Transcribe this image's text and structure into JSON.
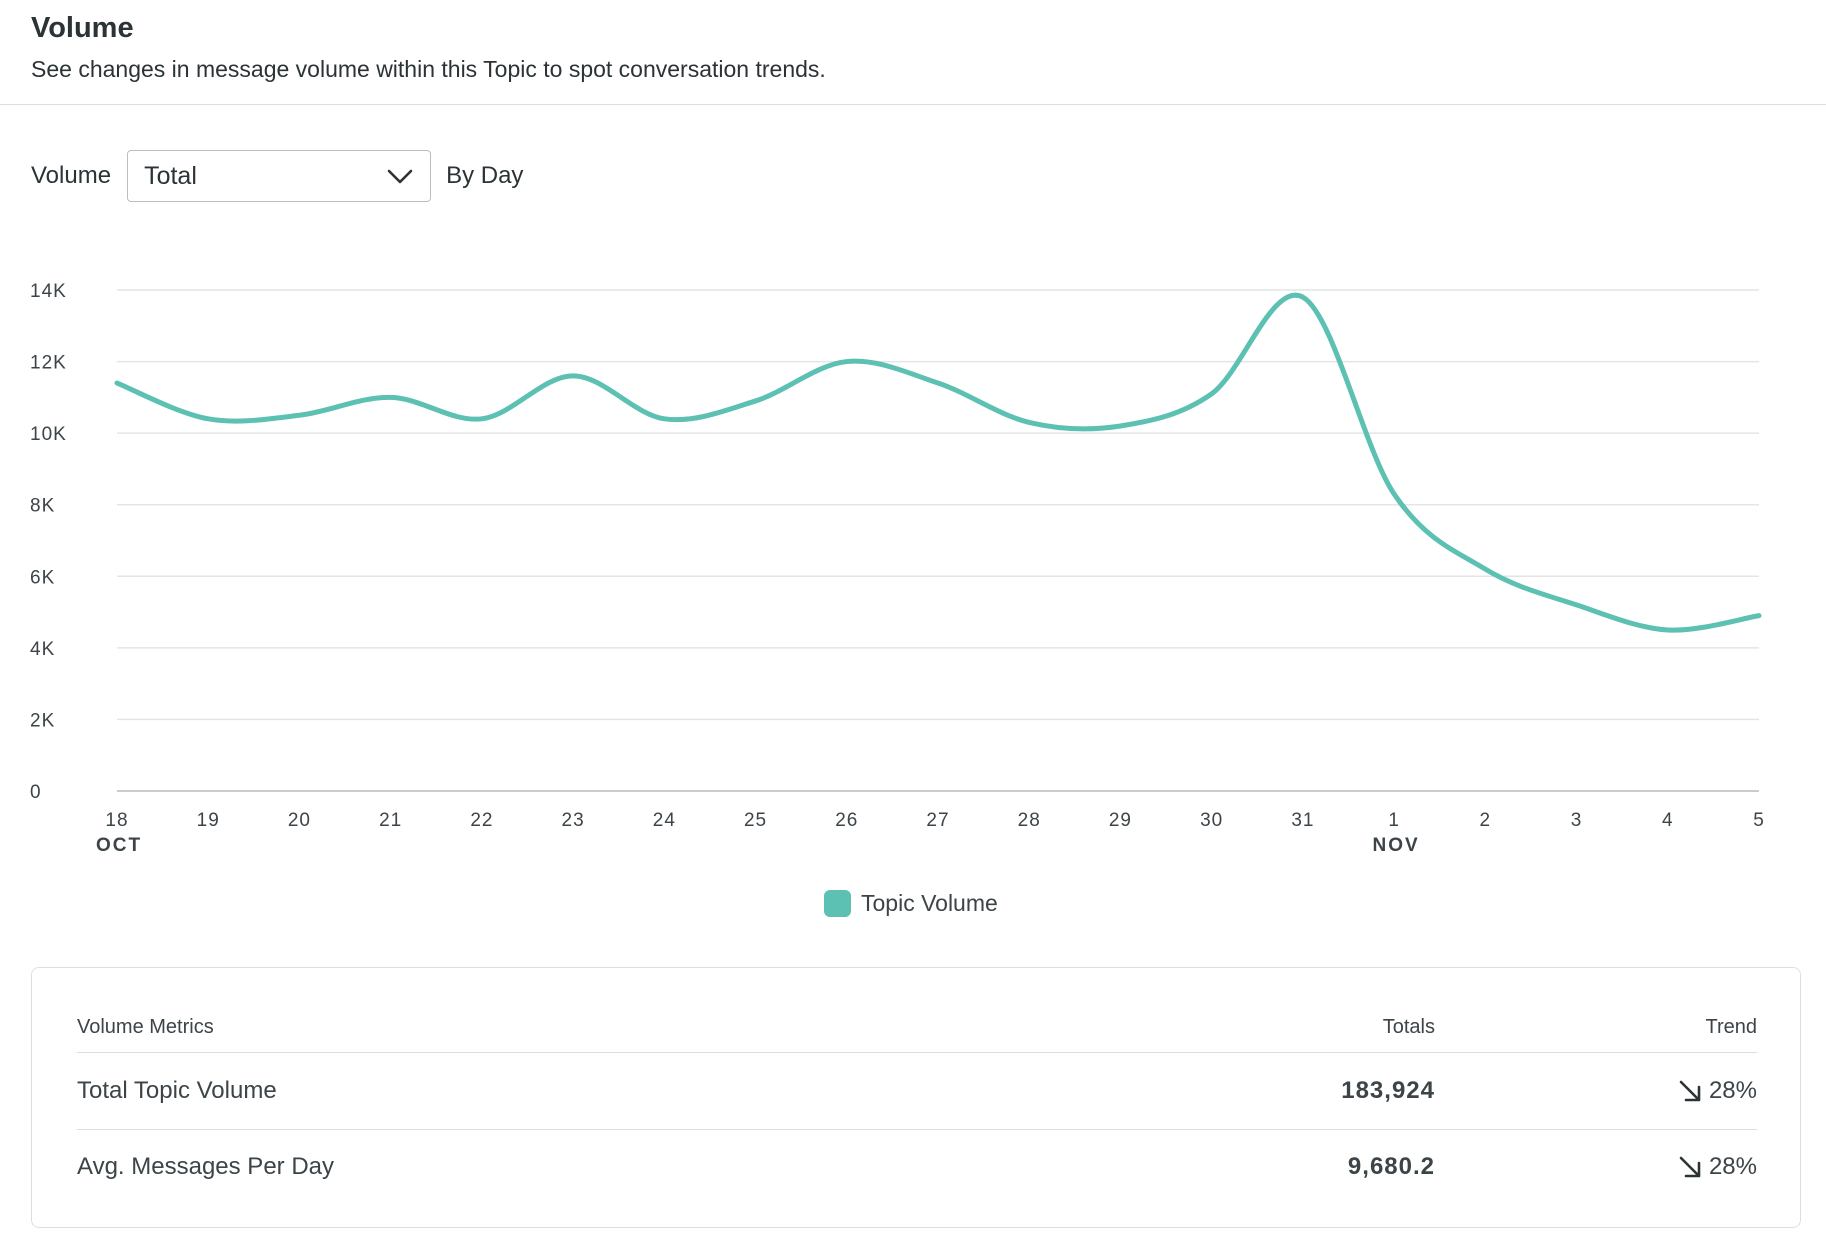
{
  "header": {
    "title": "Volume",
    "subtitle": "See changes in message volume within this Topic to spot conversation trends."
  },
  "controls": {
    "volume_label": "Volume",
    "volume_select_value": "Total",
    "period_label": "By Day"
  },
  "chart_data": {
    "type": "line",
    "title": "",
    "xlabel": "",
    "ylabel": "",
    "ylim": [
      0,
      14000
    ],
    "y_ticks": [
      "0",
      "2K",
      "4K",
      "6K",
      "8K",
      "10K",
      "12K",
      "14K"
    ],
    "x_tick_labels": [
      "18",
      "19",
      "20",
      "21",
      "22",
      "23",
      "24",
      "25",
      "26",
      "27",
      "28",
      "29",
      "30",
      "31",
      "1",
      "2",
      "3",
      "4",
      "5"
    ],
    "month_labels": [
      {
        "label": "OCT",
        "at_index": 0
      },
      {
        "label": "NOV",
        "at_index": 14
      }
    ],
    "x": [
      "Oct 18",
      "Oct 19",
      "Oct 20",
      "Oct 21",
      "Oct 22",
      "Oct 23",
      "Oct 24",
      "Oct 25",
      "Oct 26",
      "Oct 27",
      "Oct 28",
      "Oct 29",
      "Oct 30",
      "Oct 31",
      "Nov 1",
      "Nov 2",
      "Nov 3",
      "Nov 4",
      "Nov 5"
    ],
    "grid": true,
    "legend": "bottom-center",
    "series": [
      {
        "name": "Topic Volume",
        "color": "#5cc0b3",
        "values": [
          11400,
          10400,
          10500,
          11000,
          10400,
          11600,
          10400,
          10900,
          12000,
          11400,
          10300,
          10200,
          11100,
          13800,
          8300,
          6200,
          5200,
          4500,
          4900
        ]
      }
    ]
  },
  "legend": {
    "label": "Topic Volume",
    "color": "#5cc0b3"
  },
  "metrics": {
    "headers": {
      "metric": "Volume Metrics",
      "totals": "Totals",
      "trend": "Trend"
    },
    "rows": [
      {
        "label": "Total Topic Volume",
        "total": "183,924",
        "trend_icon": "arrow-down-right-icon",
        "trend": "28%"
      },
      {
        "label": "Avg. Messages Per Day",
        "total": "9,680.2",
        "trend_icon": "arrow-down-right-icon",
        "trend": "28%"
      }
    ]
  }
}
